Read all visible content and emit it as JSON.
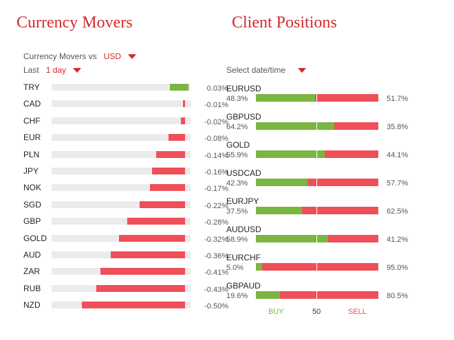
{
  "movers": {
    "title": "Currency Movers",
    "vs_label": "Currency Movers vs",
    "vs_value": "USD",
    "period_label": "Last",
    "period_value": "1 day",
    "colors": {
      "positive": "#7bb542",
      "negative": "#ef4f58",
      "track": "#ebebeb"
    },
    "rows": [
      {
        "ccy": "TRY",
        "pct": "0.03%",
        "value": 0.03
      },
      {
        "ccy": "CAD",
        "pct": "-0.01%",
        "value": -0.01
      },
      {
        "ccy": "CHF",
        "pct": "-0.02%",
        "value": -0.02
      },
      {
        "ccy": "EUR",
        "pct": "-0.08%",
        "value": -0.08
      },
      {
        "ccy": "PLN",
        "pct": "-0.14%",
        "value": -0.14
      },
      {
        "ccy": "JPY",
        "pct": "-0.16%",
        "value": -0.16
      },
      {
        "ccy": "NOK",
        "pct": "-0.17%",
        "value": -0.17
      },
      {
        "ccy": "SGD",
        "pct": "-0.22%",
        "value": -0.22
      },
      {
        "ccy": "GBP",
        "pct": "-0.28%",
        "value": -0.28
      },
      {
        "ccy": "GOLD",
        "pct": "-0.32%",
        "value": -0.32
      },
      {
        "ccy": "AUD",
        "pct": "-0.36%",
        "value": -0.36
      },
      {
        "ccy": "ZAR",
        "pct": "-0.41%",
        "value": -0.41
      },
      {
        "ccy": "RUB",
        "pct": "-0.43%",
        "value": -0.43
      },
      {
        "ccy": "NZD",
        "pct": "-0.50%",
        "value": -0.5
      }
    ]
  },
  "positions": {
    "title": "Client Positions",
    "select_label": "Select date/time",
    "colors": {
      "buy": "#7bb542",
      "sell": "#ef4f58"
    },
    "rows": [
      {
        "pair": "EURUSD",
        "buy": "48.3%",
        "sell": "51.7%",
        "buy_value": 48.3
      },
      {
        "pair": "GBPUSD",
        "buy": "64.2%",
        "sell": "35.8%",
        "buy_value": 64.2
      },
      {
        "pair": "GOLD",
        "buy": "55.9%",
        "sell": "44.1%",
        "buy_value": 55.9
      },
      {
        "pair": "USDCAD",
        "buy": "42.3%",
        "sell": "57.7%",
        "buy_value": 42.3
      },
      {
        "pair": "EURJPY",
        "buy": "37.5%",
        "sell": "62.5%",
        "buy_value": 37.5
      },
      {
        "pair": "AUDUSD",
        "buy": "58.9%",
        "sell": "41.2%",
        "buy_value": 58.9
      },
      {
        "pair": "EURCHF",
        "buy": "5.0%",
        "sell": "95.0%",
        "buy_value": 5.0
      },
      {
        "pair": "GBPAUD",
        "buy": "19.6%",
        "sell": "80.5%",
        "buy_value": 19.6
      }
    ],
    "legend": {
      "buy": "BUY",
      "mid": "50",
      "sell": "SELL"
    }
  }
}
